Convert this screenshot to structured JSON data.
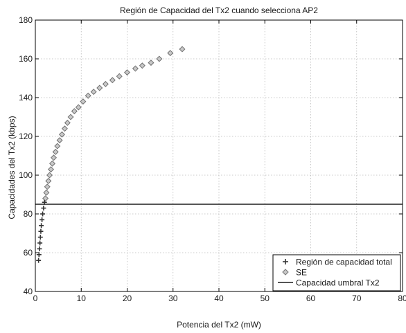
{
  "chart_data": {
    "type": "scatter",
    "title": "Región de Capacidad del Tx2 cuando selecciona AP2",
    "xlabel": "Potencia del Tx2 (mW)",
    "ylabel": "Capacidades del Tx2 (kbps)",
    "xlim": [
      0,
      80
    ],
    "ylim": [
      40,
      180
    ],
    "xticks": [
      "0",
      "10",
      "20",
      "30",
      "40",
      "50",
      "60",
      "70",
      "80"
    ],
    "yticks": [
      "40",
      "60",
      "80",
      "100",
      "120",
      "140",
      "160",
      "180"
    ],
    "grid": true,
    "legend_position": "bottom-right",
    "series": [
      {
        "name": "Región de capacidad total",
        "marker": "plus",
        "color": "#333333",
        "points": [
          [
            0.7,
            56
          ],
          [
            0.8,
            59
          ],
          [
            0.9,
            62
          ],
          [
            1.0,
            65
          ],
          [
            1.1,
            68
          ],
          [
            1.2,
            71
          ],
          [
            1.3,
            74
          ],
          [
            1.45,
            77
          ],
          [
            1.6,
            80
          ],
          [
            1.8,
            83
          ],
          [
            2.0,
            86
          ]
        ]
      },
      {
        "name": "SE",
        "marker": "diamond",
        "color": "#7a7a7a",
        "points": [
          [
            2.2,
            88
          ],
          [
            2.4,
            91
          ],
          [
            2.6,
            94
          ],
          [
            2.85,
            97
          ],
          [
            3.1,
            100
          ],
          [
            3.4,
            103
          ],
          [
            3.7,
            106
          ],
          [
            4.0,
            109
          ],
          [
            4.4,
            112
          ],
          [
            4.8,
            115
          ],
          [
            5.3,
            118
          ],
          [
            5.8,
            121
          ],
          [
            6.4,
            124
          ],
          [
            7.0,
            127
          ],
          [
            7.7,
            130
          ],
          [
            8.5,
            133
          ],
          [
            9.4,
            135
          ],
          [
            10.4,
            138
          ],
          [
            11.5,
            141
          ],
          [
            12.7,
            143
          ],
          [
            14.0,
            145
          ],
          [
            15.3,
            147
          ],
          [
            16.8,
            149
          ],
          [
            18.3,
            151
          ],
          [
            20.0,
            153
          ],
          [
            21.8,
            155
          ],
          [
            23.3,
            156.5
          ],
          [
            25.2,
            158
          ],
          [
            27.0,
            160
          ],
          [
            29.4,
            163
          ],
          [
            32.0,
            165
          ]
        ]
      },
      {
        "name": "Capacidad umbral Tx2",
        "marker": "line",
        "color": "#555555",
        "y": 85
      }
    ]
  }
}
